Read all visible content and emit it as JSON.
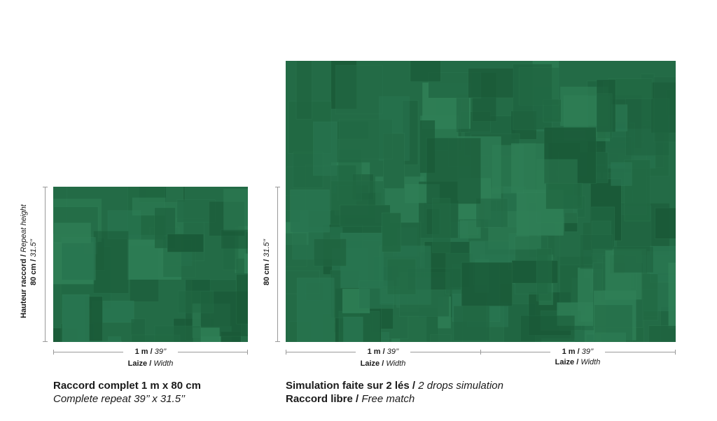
{
  "colors": {
    "pattern_base": "#236b46",
    "pattern_dark": "#1a5a38",
    "pattern_light": "#2f7f56",
    "dimension_line": "#9a9a9a",
    "text": "#1a1a1a"
  },
  "left_panel": {
    "vertical_label_bold": "Hauteur raccord / ",
    "vertical_label_italic": "Repeat height",
    "vertical_value_bold": "80 cm / ",
    "vertical_value_italic": "31.5’’",
    "width_value_bold": "1 m / ",
    "width_value_italic": "39’’",
    "width_label_bold": "Laize / ",
    "width_label_italic": "Width",
    "caption_line1": "Raccord complet 1 m x 80 cm",
    "caption_line2": "Complete repeat 39’’ x 31.5’’"
  },
  "right_panel": {
    "vertical_value_bold": "80 cm / ",
    "vertical_value_italic": "31.5’’",
    "drop1_width_bold": "1 m / ",
    "drop1_width_italic": "39’’",
    "drop1_label_bold": "Laize / ",
    "drop1_label_italic": "Width",
    "drop2_width_bold": "1 m / ",
    "drop2_width_italic": "39’’",
    "drop2_label_bold": "Laize / ",
    "drop2_label_italic": "Width",
    "caption_line1_bold": "Simulation faite sur 2 lés / ",
    "caption_line1_italic": "2 drops simulation",
    "caption_line2_bold": "Raccord libre / ",
    "caption_line2_italic": "Free match"
  }
}
